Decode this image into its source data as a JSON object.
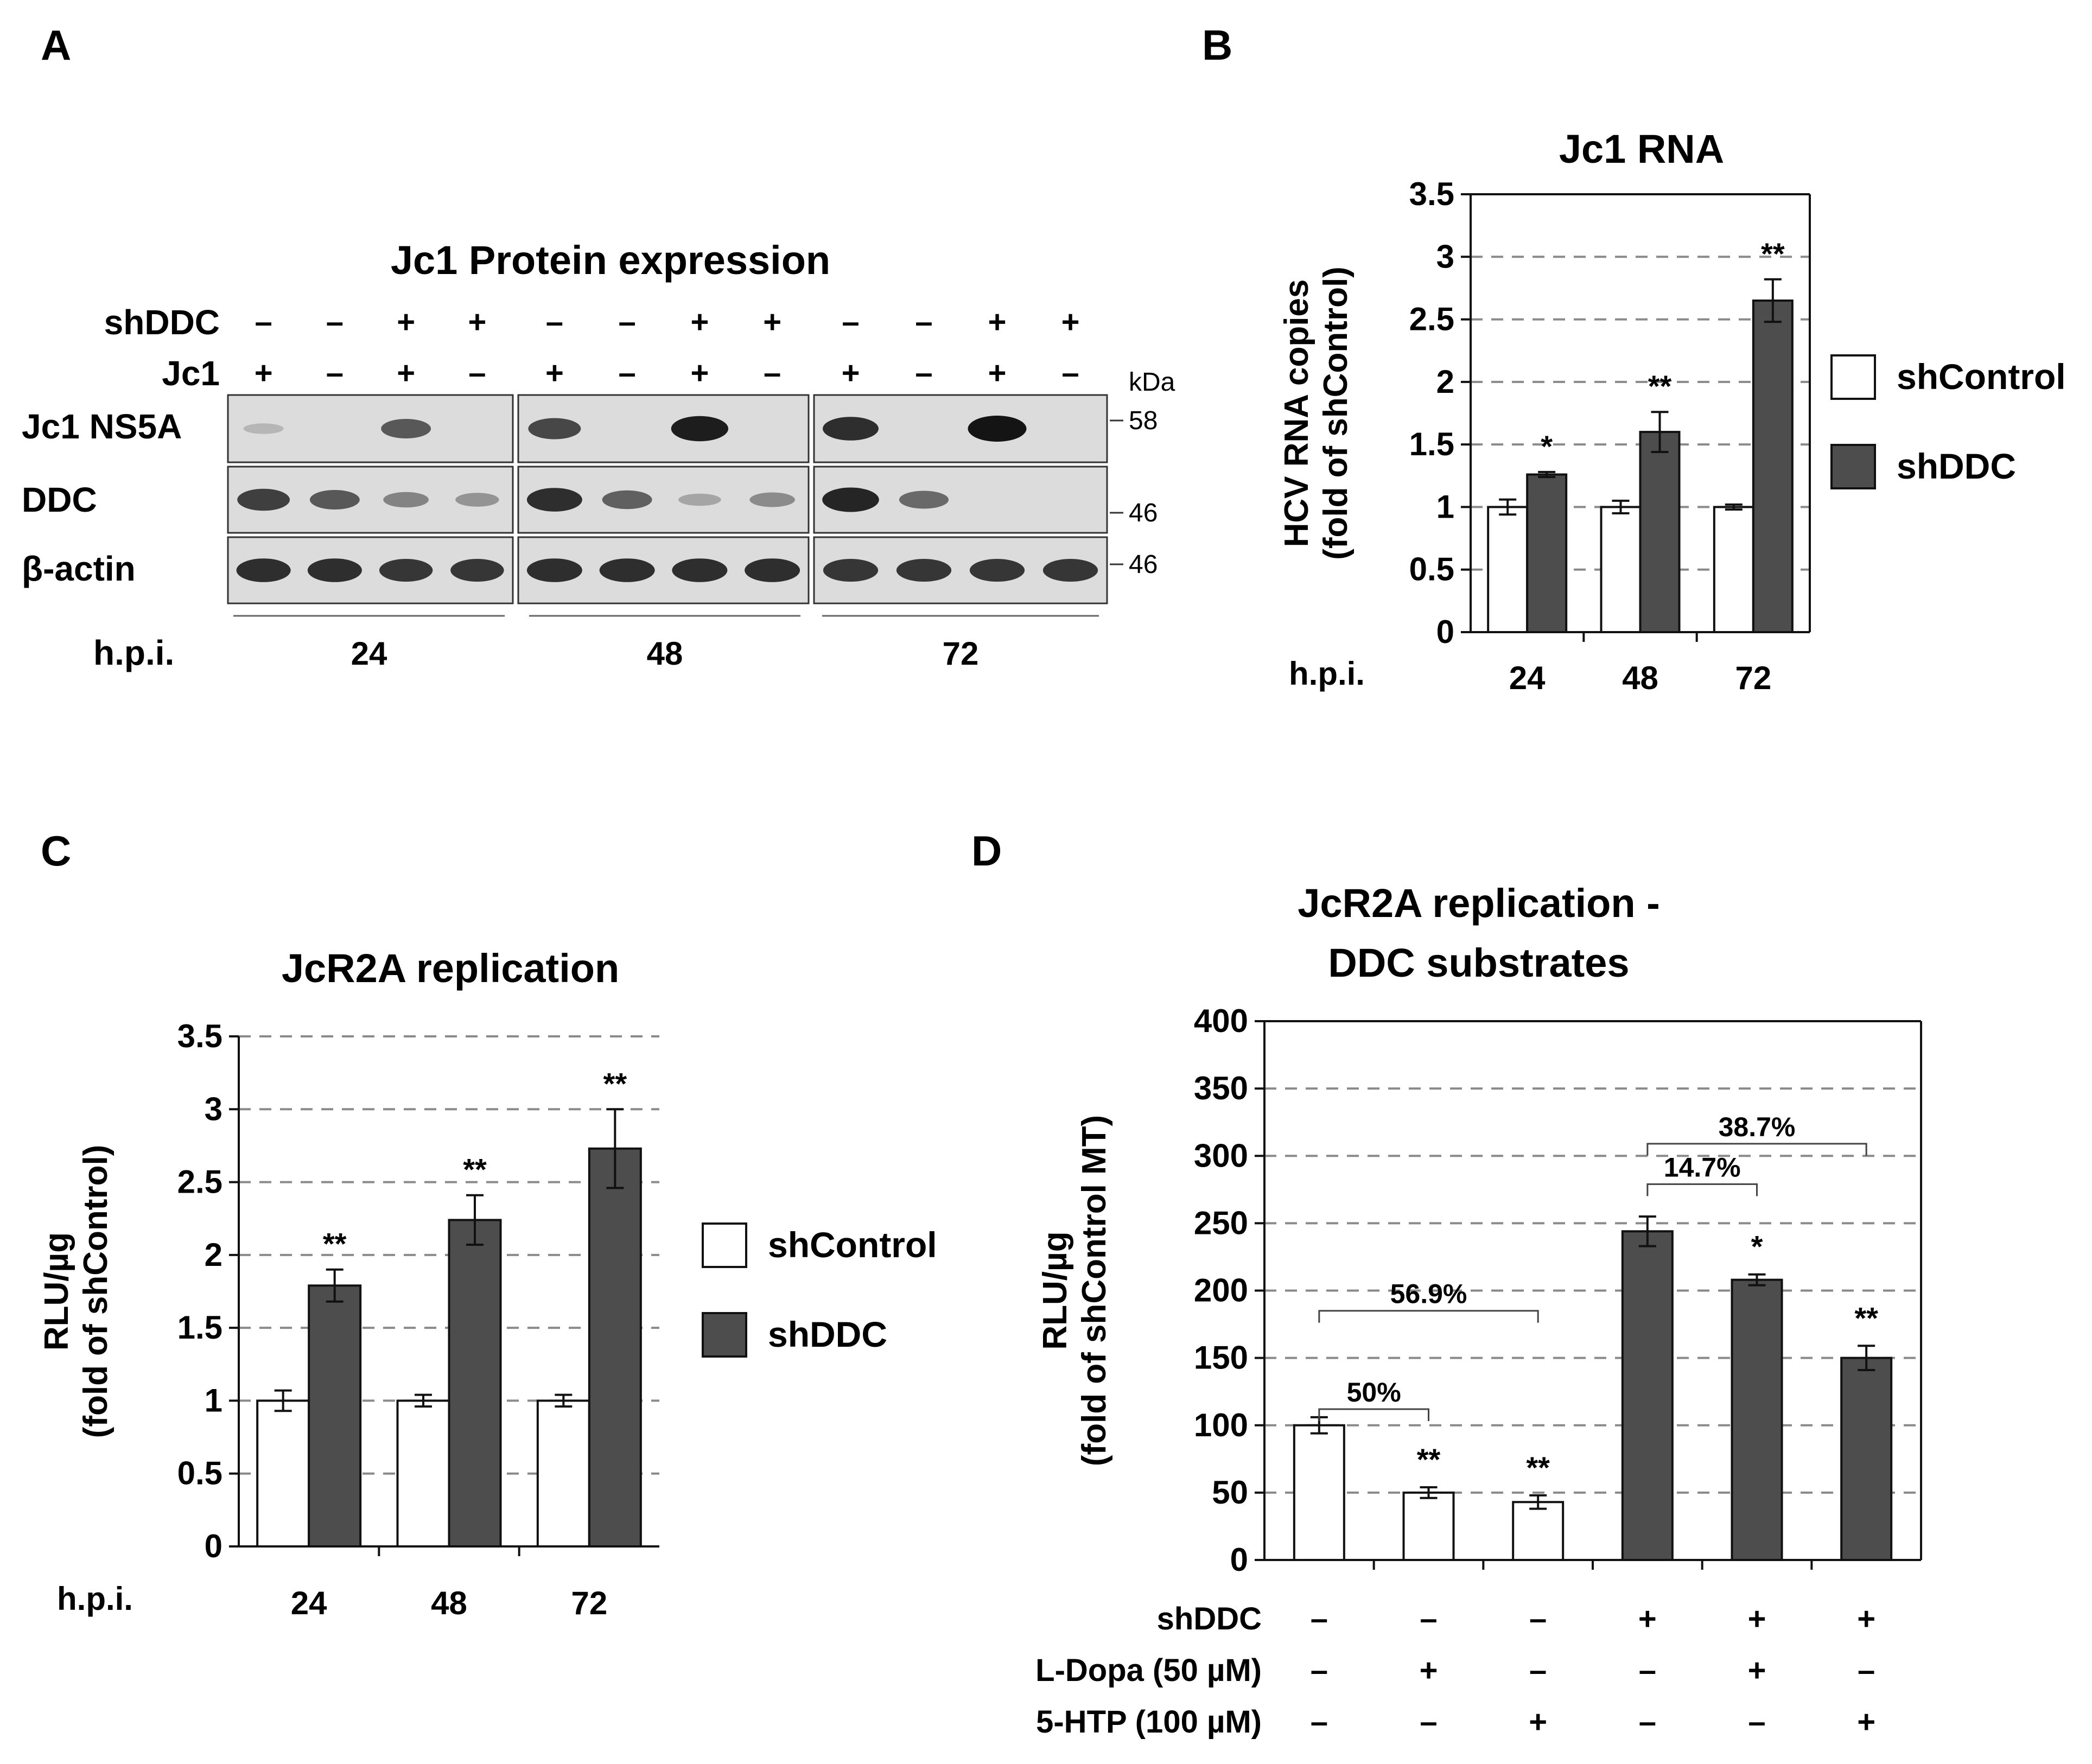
{
  "colors": {
    "shControl_fill": "#ffffff",
    "shDDC_fill": "#4d4d4d",
    "axis": "#111111",
    "grid": "#8a8a8a",
    "blot_bg": "#dcdcdc"
  },
  "panel_a": {
    "letter": "A",
    "title": "Jc1 Protein expression",
    "row_shddc_label": "shDDC",
    "row_jc1_label": "Jc1",
    "shddc_signs": [
      "–",
      "–",
      "+",
      "+",
      "–",
      "–",
      "+",
      "+",
      "–",
      "–",
      "+",
      "+"
    ],
    "jc1_signs": [
      "+",
      "–",
      "+",
      "–",
      "+",
      "–",
      "+",
      "–",
      "+",
      "–",
      "+",
      "–"
    ],
    "kda_label": "kDa",
    "blots": [
      {
        "label": "Jc1 NS5A",
        "marker": "58",
        "intensity": [
          0.05,
          0.0,
          0.6,
          0.0,
          0.7,
          0.0,
          0.95,
          0.0,
          0.85,
          0.0,
          1.0,
          0.0
        ]
      },
      {
        "label": "DDC",
        "marker": "46",
        "intensity": [
          0.75,
          0.6,
          0.35,
          0.25,
          0.85,
          0.55,
          0.15,
          0.3,
          0.9,
          0.5,
          0.0,
          0.0
        ]
      },
      {
        "label": "β-actin",
        "marker": "46",
        "intensity": [
          0.85,
          0.85,
          0.8,
          0.8,
          0.85,
          0.85,
          0.85,
          0.85,
          0.8,
          0.8,
          0.8,
          0.8
        ]
      }
    ],
    "hpi_label": "h.p.i.",
    "timepoints": [
      "24",
      "48",
      "72"
    ]
  },
  "chart_data": [
    {
      "panel": "B",
      "type": "bar",
      "title": "Jc1 RNA",
      "ylabel_line1": "HCV RNA copies",
      "ylabel_line2": "(fold of shControl)",
      "xlabel": "h.p.i.",
      "categories": [
        "24",
        "48",
        "72"
      ],
      "ylim": [
        0,
        3.5
      ],
      "yticks": [
        "0",
        "0.5",
        "1",
        "1.5",
        "2",
        "2.5",
        "3",
        "3.5"
      ],
      "grid": "dashed horizontal",
      "legend_position": "right",
      "series": [
        {
          "name": "shControl",
          "values": [
            1.0,
            1.0,
            1.0
          ],
          "errors": [
            0.06,
            0.05,
            0.02
          ]
        },
        {
          "name": "shDDC",
          "values": [
            1.26,
            1.6,
            2.65
          ],
          "errors": [
            0.02,
            0.16,
            0.17
          ]
        }
      ],
      "significance": [
        "*",
        "**",
        "**"
      ]
    },
    {
      "panel": "C",
      "type": "bar",
      "title": "JcR2A replication",
      "ylabel_line1": "RLU/µg",
      "ylabel_line2": "(fold of shControl)",
      "xlabel": "h.p.i.",
      "categories": [
        "24",
        "48",
        "72"
      ],
      "ylim": [
        0,
        3.5
      ],
      "yticks": [
        "0",
        "0.5",
        "1",
        "1.5",
        "2",
        "2.5",
        "3",
        "3.5"
      ],
      "grid": "dashed horizontal",
      "legend_position": "right",
      "series": [
        {
          "name": "shControl",
          "values": [
            1.0,
            1.0,
            1.0
          ],
          "errors": [
            0.07,
            0.04,
            0.04
          ]
        },
        {
          "name": "shDDC",
          "values": [
            1.79,
            2.24,
            2.73
          ],
          "errors": [
            0.11,
            0.17,
            0.27
          ]
        }
      ],
      "significance": [
        "**",
        "**",
        "**"
      ]
    },
    {
      "panel": "D",
      "type": "bar",
      "title_line1": "JcR2A replication -",
      "title_line2": "DDC substrates",
      "ylabel_line1": "RLU/µg",
      "ylabel_line2": "(fold of shControl MT)",
      "ylim": [
        0,
        400
      ],
      "yticks": [
        "0",
        "50",
        "100",
        "150",
        "200",
        "250",
        "300",
        "350",
        "400"
      ],
      "grid": "dashed horizontal",
      "values": [
        100,
        50,
        43,
        244,
        208,
        150
      ],
      "errors": [
        6,
        4,
        5,
        11,
        4,
        9
      ],
      "bar_groups": [
        "shControl",
        "shControl",
        "shControl",
        "shDDC",
        "shDDC",
        "shDDC"
      ],
      "significance": [
        "",
        "**",
        "**",
        "",
        "*",
        "**"
      ],
      "conditions": [
        {
          "label": "shDDC",
          "signs": [
            "–",
            "–",
            "–",
            "+",
            "+",
            "+"
          ]
        },
        {
          "label": "L-Dopa (50 µM)",
          "signs": [
            "–",
            "+",
            "–",
            "–",
            "+",
            "–"
          ]
        },
        {
          "label": "5-HTP (100 µM)",
          "signs": [
            "–",
            "–",
            "+",
            "–",
            "–",
            "+"
          ]
        }
      ],
      "comparisons": [
        {
          "from": 0,
          "to": 1,
          "label": "50%"
        },
        {
          "from": 0,
          "to": 2,
          "label": "56.9%"
        },
        {
          "from": 3,
          "to": 4,
          "label": "14.7%"
        },
        {
          "from": 3,
          "to": 5,
          "label": "38.7%"
        }
      ]
    }
  ],
  "panel_letters": {
    "b": "B",
    "c": "C",
    "d": "D"
  }
}
